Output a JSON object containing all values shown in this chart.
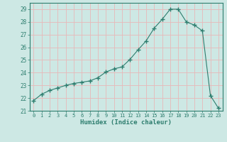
{
  "x": [
    0,
    1,
    2,
    3,
    4,
    5,
    6,
    7,
    8,
    9,
    10,
    11,
    12,
    13,
    14,
    15,
    16,
    17,
    18,
    19,
    20,
    21,
    22,
    23
  ],
  "y": [
    21.8,
    22.3,
    22.6,
    22.8,
    23.0,
    23.15,
    23.25,
    23.35,
    23.6,
    24.05,
    24.3,
    24.45,
    25.05,
    25.8,
    26.5,
    27.5,
    28.2,
    29.0,
    29.0,
    28.0,
    27.75,
    27.3,
    22.2,
    21.2
  ],
  "ylim": [
    21,
    29.5
  ],
  "yticks": [
    21,
    22,
    23,
    24,
    25,
    26,
    27,
    28,
    29
  ],
  "xlabel": "Humidex (Indice chaleur)",
  "line_color": "#2d7d6e",
  "marker": "+",
  "marker_size": 4,
  "bg_color": "#cde8e4",
  "grid_color": "#e8b8b8",
  "axis_color": "#2d7d6e",
  "tick_color": "#2d7d6e",
  "label_color": "#2d7d6e"
}
